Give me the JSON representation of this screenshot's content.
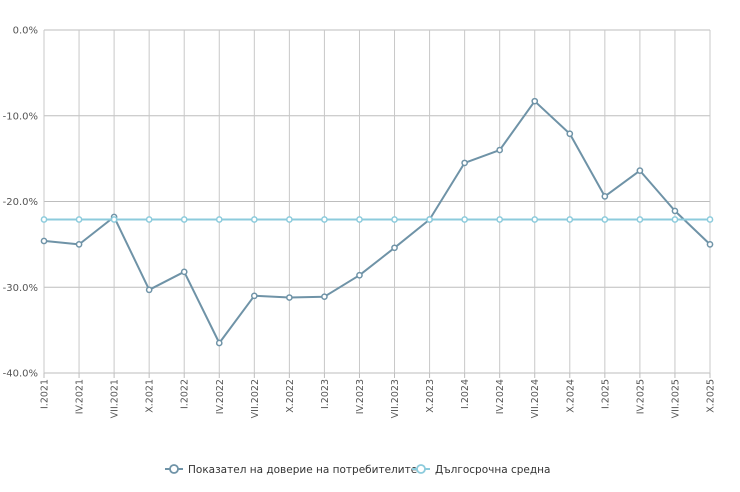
{
  "chart_data": {
    "type": "line",
    "categories": [
      "I.2021",
      "IV.2021",
      "VII.2021",
      "X.2021",
      "I.2022",
      "IV.2022",
      "VII.2022",
      "X.2022",
      "I.2023",
      "IV.2023",
      "VII.2023",
      "X.2023",
      "I.2024",
      "IV.2024",
      "VII.2024",
      "X.2024",
      "I.2025",
      "IV.2025",
      "VII.2025",
      "X.2025"
    ],
    "series": [
      {
        "name": "Показател на доверие на потребителите",
        "color": "#6f93a7",
        "values": [
          -24.6,
          -25.0,
          -21.8,
          -30.3,
          -28.2,
          -36.5,
          -31.0,
          -31.2,
          -31.1,
          -28.6,
          -25.4,
          -22.1,
          -15.5,
          -14.0,
          -8.3,
          -12.1,
          -19.4,
          -16.4,
          -21.1,
          -25.0
        ]
      },
      {
        "name": "Дългосрочна средна",
        "color": "#8ccbdc",
        "values": [
          -22.1,
          -22.1,
          -22.1,
          -22.1,
          -22.1,
          -22.1,
          -22.1,
          -22.1,
          -22.1,
          -22.1,
          -22.1,
          -22.1,
          -22.1,
          -22.1,
          -22.1,
          -22.1,
          -22.1,
          -22.1,
          -22.1,
          -22.1
        ]
      }
    ],
    "yticks": [
      0,
      -10,
      -20,
      -30,
      -40
    ],
    "ytick_labels": [
      "0.0%",
      "-10.0%",
      "-20.0%",
      "-30.0%",
      "-40.0%"
    ],
    "ylim": [
      -40,
      0
    ],
    "grid": true,
    "legend_position": "bottom-center"
  }
}
